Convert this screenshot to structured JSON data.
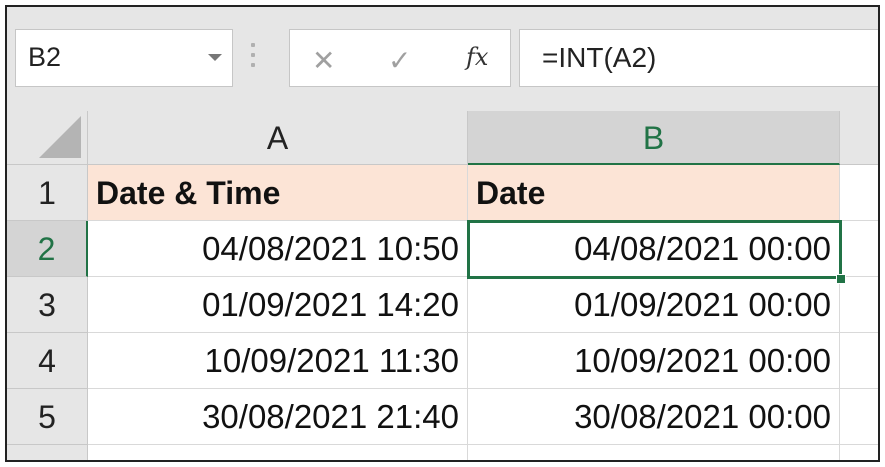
{
  "formula_bar": {
    "name_box": "B2",
    "cancel_icon": "x-icon",
    "confirm_icon": "check-icon",
    "fx_label": "fx",
    "formula": "=INT(A2)"
  },
  "sheet": {
    "columns": [
      "A",
      "B"
    ],
    "rows": [
      "1",
      "2",
      "3",
      "4",
      "5"
    ],
    "selected_cell": "B2",
    "header_fill": "#fce4d6",
    "selection_color": "#217346",
    "cells": {
      "A1": "Date & Time",
      "B1": "Date",
      "A2": "04/08/2021 10:50",
      "B2": "04/08/2021 00:00",
      "A3": "01/09/2021 14:20",
      "B3": "01/09/2021 00:00",
      "A4": "10/09/2021 11:30",
      "B4": "10/09/2021 00:00",
      "A5": "30/08/2021 21:40",
      "B5": "30/08/2021 00:00"
    }
  }
}
